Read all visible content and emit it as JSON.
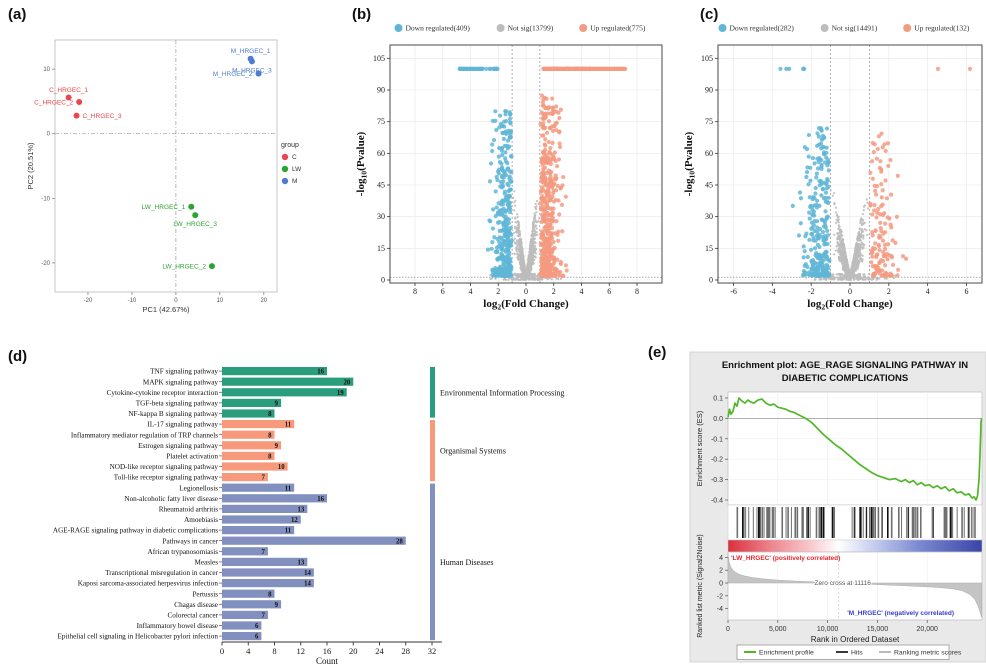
{
  "panel_labels": {
    "a": "(a)",
    "b": "(b)",
    "c": "(c)",
    "d": "(d)",
    "e": "(e)"
  },
  "chart_data": [
    {
      "id": "pca",
      "type": "scatter",
      "panel": "a",
      "xlabel": "PC1 (42.67%)",
      "ylabel": "PC2 (20.51%)",
      "xlim": [
        -27.5,
        23
      ],
      "ylim": [
        -24.5,
        14.5
      ],
      "xticks": [
        -20,
        -10,
        0,
        10,
        20
      ],
      "yticks": [
        -20,
        -10,
        0,
        10
      ],
      "legend_title": "group",
      "groups": [
        {
          "name": "C",
          "color": "#e8474e"
        },
        {
          "name": "LW",
          "color": "#2ca432"
        },
        {
          "name": "M",
          "color": "#4f7ccc"
        }
      ],
      "points": [
        {
          "label": "C_HRGEC_1",
          "group": "C",
          "x": -24.4,
          "y": 5.6,
          "anchor": "above"
        },
        {
          "label": "C_HRGEC_2",
          "group": "C",
          "x": -22.0,
          "y": 4.9,
          "anchor": "left"
        },
        {
          "label": "C_HRGEC_3",
          "group": "C",
          "x": -22.6,
          "y": 2.8,
          "anchor": "right"
        },
        {
          "label": "M_HRGEC_1",
          "group": "M",
          "x": 17.0,
          "y": 11.6,
          "anchor": "above"
        },
        {
          "label": "M_HRGEC_3",
          "group": "M",
          "x": 17.3,
          "y": 11.2,
          "anchor": "below"
        },
        {
          "label": "M_HRGEC_2",
          "group": "M",
          "x": 18.8,
          "y": 9.3,
          "anchor": "left"
        },
        {
          "label": "LW_HRGEC_1",
          "group": "LW",
          "x": 3.5,
          "y": -11.3,
          "anchor": "left"
        },
        {
          "label": "LW_HRGEC_3",
          "group": "LW",
          "x": 4.4,
          "y": -12.6,
          "anchor": "below"
        },
        {
          "label": "LW_HRGEC_2",
          "group": "LW",
          "x": 8.2,
          "y": -20.5,
          "anchor": "left"
        }
      ]
    },
    {
      "id": "volcano_b",
      "type": "scatter",
      "panel": "b",
      "legend": [
        {
          "label": "Down regulated(409)",
          "color": "#5fb6d6"
        },
        {
          "label": "Not sig(13799)",
          "color": "#bdbdbd"
        },
        {
          "label": "Up regulated(775)",
          "color": "#f59a80"
        }
      ],
      "counts": {
        "down": 409,
        "notsig": 13799,
        "up": 775
      },
      "xlabel": {
        "pre": "log",
        "sub": "2",
        "post": "(Fold Change)"
      },
      "ylabel": {
        "pre": "-log",
        "sub": "10",
        "post": "(Pvalue)"
      },
      "xlim": [
        -9.8,
        9.8
      ],
      "xticks": [
        -8,
        -6,
        -4,
        -2,
        0,
        2,
        4,
        6,
        8
      ],
      "xtick_labels": [
        "8",
        "6",
        "4",
        "2",
        "0",
        "2",
        "4",
        "6",
        "8"
      ],
      "ylim": [
        0,
        108
      ],
      "yticks": [
        0,
        15,
        30,
        45,
        60,
        75,
        90,
        105
      ],
      "thresholds": {
        "x": [
          -1,
          1
        ],
        "y": 1.3
      },
      "cap": 100
    },
    {
      "id": "volcano_c",
      "type": "scatter",
      "panel": "c",
      "legend": [
        {
          "label": "Down regulated(282)",
          "color": "#5fb6d6"
        },
        {
          "label": "Not sig(14491)",
          "color": "#bdbdbd"
        },
        {
          "label": "Up regulated(132)",
          "color": "#f59a80"
        }
      ],
      "counts": {
        "down": 282,
        "notsig": 14491,
        "up": 132
      },
      "xlabel": {
        "pre": "log",
        "sub": "2",
        "post": "(Fold Change)"
      },
      "ylabel": {
        "pre": "-log",
        "sub": "10",
        "post": "(Pvalue)"
      },
      "xlim": [
        -6.8,
        6.8
      ],
      "xticks": [
        -6,
        -4,
        -2,
        0,
        2,
        4,
        6
      ],
      "xtick_labels": [
        "-6",
        "-4",
        "-2",
        "0",
        "2",
        "4",
        "6"
      ],
      "ylim": [
        0,
        108
      ],
      "yticks": [
        0,
        15,
        30,
        45,
        60,
        75,
        90,
        105
      ],
      "thresholds": {
        "x": [
          -1,
          1
        ],
        "y": 1.3
      },
      "cap": 100
    },
    {
      "id": "kegg",
      "type": "bar",
      "panel": "d",
      "xlabel": "Count",
      "xlim": [
        0,
        32
      ],
      "xticks": [
        0,
        4,
        8,
        12,
        16,
        20,
        24,
        28,
        32
      ],
      "groups": [
        {
          "name": "Environmental Information Processing",
          "color": "#2a9d7c"
        },
        {
          "name": "Organismal Systems",
          "color": "#f79a7b"
        },
        {
          "name": "Human Diseases",
          "color": "#8190be"
        }
      ],
      "bars": [
        {
          "label": "TNF signaling pathway",
          "value": 16,
          "group": 0
        },
        {
          "label": "MAPK signaling pathway",
          "value": 20,
          "group": 0
        },
        {
          "label": "Cytokine-cytokine receptor interaction",
          "value": 19,
          "group": 0
        },
        {
          "label": "TGF-beta signaling pathway",
          "value": 9,
          "group": 0
        },
        {
          "label": "NF-kappa B signaling pathway",
          "value": 8,
          "group": 0
        },
        {
          "label": "IL-17 signaling pathway",
          "value": 11,
          "group": 1
        },
        {
          "label": "Inflammatory mediator regulation of TRP channels",
          "value": 8,
          "group": 1
        },
        {
          "label": "Estrogen signaling pathway",
          "value": 9,
          "group": 1
        },
        {
          "label": "Platelet activation",
          "value": 8,
          "group": 1
        },
        {
          "label": "NOD-like receptor signaling pathway",
          "value": 10,
          "group": 1
        },
        {
          "label": "Toll-like receptor signaling pathway",
          "value": 7,
          "group": 1
        },
        {
          "label": "Legionellosis",
          "value": 11,
          "group": 2
        },
        {
          "label": "Non-alcoholic fatty liver disease",
          "value": 16,
          "group": 2
        },
        {
          "label": "Rheumatoid arthritis",
          "value": 13,
          "group": 2
        },
        {
          "label": "Amoebiasis",
          "value": 12,
          "group": 2
        },
        {
          "label": "AGE-RAGE signaling pathway in diabetic complications",
          "value": 11,
          "group": 2
        },
        {
          "label": "Pathways in cancer",
          "value": 28,
          "group": 2
        },
        {
          "label": "African trypanosomiasis",
          "value": 7,
          "group": 2
        },
        {
          "label": "Measles",
          "value": 13,
          "group": 2
        },
        {
          "label": "Transcriptional misregulation in cancer",
          "value": 14,
          "group": 2
        },
        {
          "label": "Kaposi sarcoma-associated herpesvirus infection",
          "value": 14,
          "group": 2
        },
        {
          "label": "Pertussis",
          "value": 8,
          "group": 2
        },
        {
          "label": "Chagas disease",
          "value": 9,
          "group": 2
        },
        {
          "label": "Colorectal cancer",
          "value": 7,
          "group": 2
        },
        {
          "label": "Inflammatory bowel disease",
          "value": 6,
          "group": 2
        },
        {
          "label": "Epithelial cell signaling in Helicobacter pylori infection",
          "value": 6,
          "group": 2
        }
      ]
    },
    {
      "id": "gsea",
      "type": "line",
      "panel": "e",
      "title_line1": "Enrichment plot: AGE_RAGE SIGNALING PATHWAY IN",
      "title_line2": "DIABETIC COMPLICATIONS",
      "es_ylabel": "Enrichment score (ES)",
      "es_yticks": [
        0.1,
        0.0,
        -0.1,
        -0.2,
        -0.3,
        -0.4
      ],
      "metric_ylabel": "Ranked list metric (Signal2Noise)",
      "metric_yticks": [
        4,
        2,
        0,
        -2,
        -4
      ],
      "xlabel": "Rank in Ordered Dataset",
      "xticks": [
        0,
        5000,
        10000,
        15000,
        20000
      ],
      "xmax": 25500,
      "zero_cross": 11116,
      "zero_cross_label": "Zero cross at 11116",
      "pos_label": "'LW_HRGEC' (positively correlated)",
      "neg_label": "'M_HRGEC' (negatively correlated)",
      "curve_color": "#52b728",
      "pos_color": "#e8262e",
      "neg_color": "#3a3acc",
      "gradient": [
        "#d9303c",
        "#ee8a93",
        "#f8c6cb",
        "#ffffff",
        "#c3cbee",
        "#7b8ad2",
        "#3b44a8"
      ],
      "es_points": [
        [
          0,
          0.005
        ],
        [
          150,
          0.045
        ],
        [
          300,
          0.02
        ],
        [
          500,
          0.035
        ],
        [
          700,
          0.075
        ],
        [
          900,
          0.06
        ],
        [
          1100,
          0.1
        ],
        [
          1400,
          0.085
        ],
        [
          1700,
          0.075
        ],
        [
          2000,
          0.09
        ],
        [
          2300,
          0.08
        ],
        [
          2600,
          0.075
        ],
        [
          3000,
          0.09
        ],
        [
          3400,
          0.095
        ],
        [
          3800,
          0.075
        ],
        [
          4200,
          0.065
        ],
        [
          4600,
          0.07
        ],
        [
          5000,
          0.055
        ],
        [
          5400,
          0.05
        ],
        [
          5800,
          0.045
        ],
        [
          6200,
          0.035
        ],
        [
          6600,
          0.03
        ],
        [
          7200,
          0.015
        ],
        [
          7800,
          0.0
        ],
        [
          8400,
          -0.02
        ],
        [
          9000,
          -0.05
        ],
        [
          9600,
          -0.08
        ],
        [
          10200,
          -0.105
        ],
        [
          10800,
          -0.13
        ],
        [
          11400,
          -0.15
        ],
        [
          12000,
          -0.175
        ],
        [
          12600,
          -0.2
        ],
        [
          13200,
          -0.225
        ],
        [
          13800,
          -0.245
        ],
        [
          14400,
          -0.265
        ],
        [
          15000,
          -0.28
        ],
        [
          15600,
          -0.29
        ],
        [
          16200,
          -0.3
        ],
        [
          16800,
          -0.295
        ],
        [
          17400,
          -0.31
        ],
        [
          17800,
          -0.3
        ],
        [
          18200,
          -0.315
        ],
        [
          18600,
          -0.305
        ],
        [
          19000,
          -0.325
        ],
        [
          19400,
          -0.315
        ],
        [
          19800,
          -0.33
        ],
        [
          20200,
          -0.325
        ],
        [
          20600,
          -0.34
        ],
        [
          21000,
          -0.33
        ],
        [
          21400,
          -0.345
        ],
        [
          21800,
          -0.335
        ],
        [
          22200,
          -0.355
        ],
        [
          22600,
          -0.345
        ],
        [
          23000,
          -0.365
        ],
        [
          23400,
          -0.36
        ],
        [
          23800,
          -0.375
        ],
        [
          24200,
          -0.37
        ],
        [
          24500,
          -0.39
        ],
        [
          24700,
          -0.385
        ],
        [
          24900,
          -0.4
        ],
        [
          25050,
          -0.38
        ],
        [
          25200,
          -0.3
        ],
        [
          25300,
          -0.18
        ],
        [
          25400,
          -0.02
        ],
        [
          25450,
          0.0
        ]
      ],
      "metric_points": [
        [
          0,
          4.6
        ],
        [
          100,
          3.4
        ],
        [
          250,
          2.6
        ],
        [
          500,
          2.0
        ],
        [
          800,
          1.6
        ],
        [
          1200,
          1.3
        ],
        [
          1800,
          1.05
        ],
        [
          2500,
          0.85
        ],
        [
          3500,
          0.65
        ],
        [
          5000,
          0.45
        ],
        [
          7000,
          0.28
        ],
        [
          9000,
          0.15
        ],
        [
          11116,
          0.0
        ],
        [
          13000,
          -0.12
        ],
        [
          15000,
          -0.25
        ],
        [
          17000,
          -0.38
        ],
        [
          19000,
          -0.52
        ],
        [
          21000,
          -0.68
        ],
        [
          22500,
          -0.9
        ],
        [
          23500,
          -1.2
        ],
        [
          24300,
          -1.8
        ],
        [
          24800,
          -2.6
        ],
        [
          25100,
          -3.6
        ],
        [
          25350,
          -4.8
        ],
        [
          25450,
          -5.3
        ]
      ],
      "legend": [
        {
          "label": "Enrichment profile",
          "color": "#52b728"
        },
        {
          "label": "Hits",
          "color": "#3a3a3a"
        },
        {
          "label": "Ranking metric scores",
          "color": "#bbbbbb"
        }
      ]
    }
  ]
}
